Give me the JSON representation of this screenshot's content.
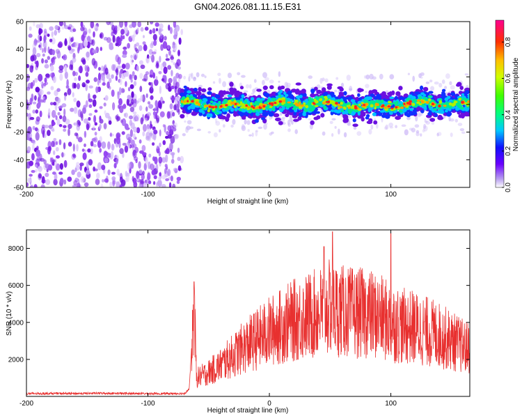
{
  "title": "GN04.2026.081.11.15.E31",
  "chart_data": [
    {
      "type": "heatmap",
      "xlabel": "Height of straight line (km)",
      "ylabel": "Frequency (Hz)",
      "xlim": [
        -200,
        165
      ],
      "ylim": [
        -60,
        60
      ],
      "xticks": [
        -200,
        -100,
        0,
        100
      ],
      "yticks": [
        60,
        40,
        20,
        0,
        -20,
        -40,
        -60
      ],
      "noise_region_x": [
        -200,
        -72
      ],
      "signal_band_center_hz": 0,
      "signal_band_halfwidth_hz": 8,
      "colorbar": {
        "label": "Normalized spectral amplitude",
        "range": [
          0.0,
          0.92
        ],
        "ticks": [
          0.0,
          0.2,
          0.4,
          0.6,
          0.8
        ],
        "tick_labels": [
          "0.0",
          "0.2",
          "0.4",
          "0.6",
          "0.8"
        ]
      }
    },
    {
      "type": "line",
      "xlabel": "Height of straight line (km)",
      "ylabel": "SNR (10 * v/v)",
      "xlim": [
        -200,
        165
      ],
      "ylim": [
        0,
        9000
      ],
      "xticks": [
        -200,
        -100,
        0,
        100
      ],
      "yticks": [
        2000,
        4000,
        6000,
        8000
      ],
      "color": "#e8302f",
      "series": [
        {
          "name": "SNR",
          "x": [
            -200,
            -180,
            -160,
            -140,
            -120,
            -100,
            -80,
            -70,
            -66,
            -62,
            -60,
            -50,
            -40,
            -30,
            -20,
            -10,
            0,
            10,
            20,
            30,
            40,
            50,
            60,
            70,
            80,
            90,
            100,
            110,
            120,
            130,
            140,
            150,
            160,
            165
          ],
          "y": [
            150,
            160,
            155,
            170,
            160,
            150,
            150,
            160,
            400,
            5000,
            1000,
            1300,
            1700,
            2200,
            2700,
            3100,
            3500,
            3800,
            4100,
            4300,
            4500,
            4800,
            4600,
            4500,
            4500,
            4300,
            4000,
            3800,
            3700,
            3500,
            3300,
            3000,
            2700,
            2600
          ]
        }
      ],
      "peaks": [
        {
          "x": -62,
          "y": 6200
        },
        {
          "x": 45,
          "y": 8100
        },
        {
          "x": 52,
          "y": 8900
        },
        {
          "x": 100,
          "y": 8800
        }
      ]
    }
  ]
}
